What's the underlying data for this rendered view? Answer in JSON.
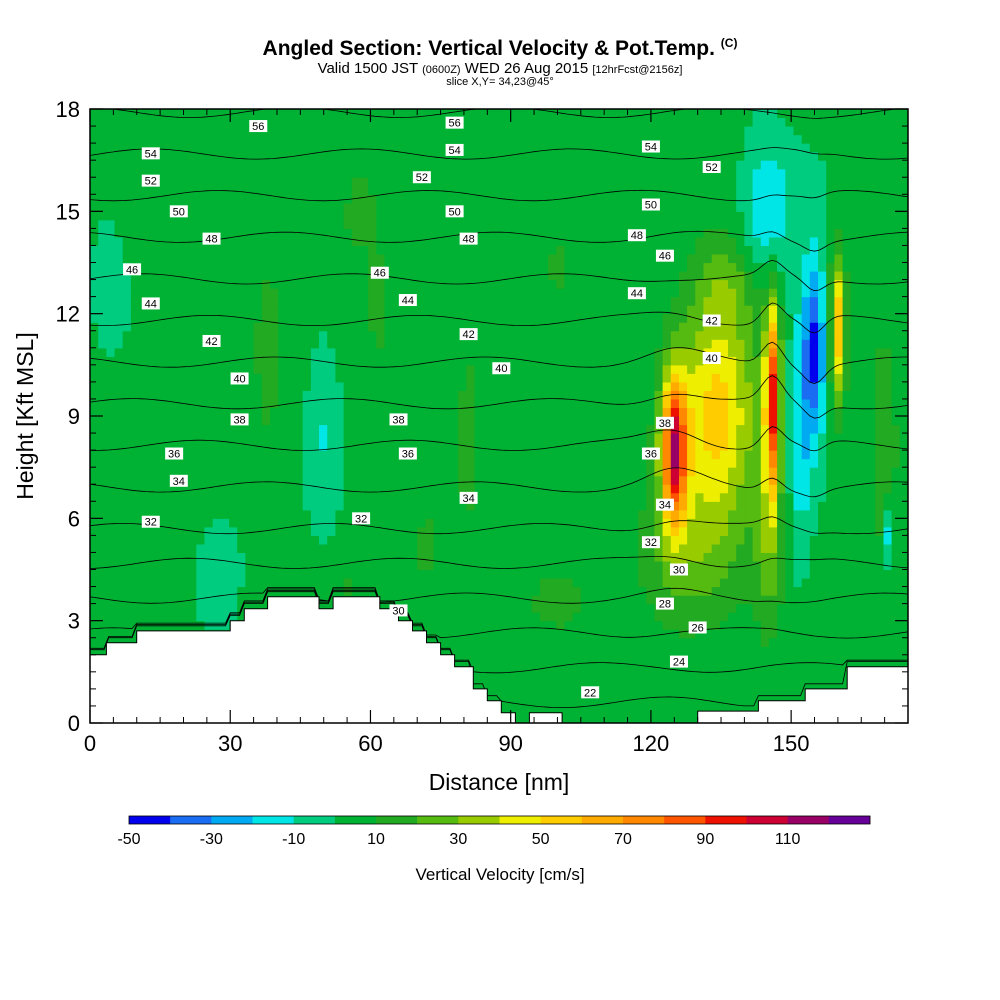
{
  "header": {
    "title": "Angled Section: Vertical Velocity & Pot.Temp.",
    "title_tag": "(C)",
    "valid_prefix": "Valid 1500 JST",
    "valid_utc": "(0600Z)",
    "valid_date": "WED 26 Aug 2015",
    "fcst": "[12hrFcst@2156z]",
    "slice": "slice X,Y= 34,23@45°"
  },
  "chart_data": {
    "type": "heatmap",
    "title": "Angled Section: Vertical Velocity & Pot.Temp.",
    "xlabel": "Distance [nm]",
    "ylabel": "Height [Kft MSL]",
    "xlim": [
      0,
      175
    ],
    "ylim": [
      0,
      18
    ],
    "x_ticks": [
      "0",
      "30",
      "60",
      "90",
      "120",
      "150"
    ],
    "y_ticks": [
      "0",
      "3",
      "6",
      "9",
      "12",
      "15",
      "18"
    ],
    "colorbar": {
      "title": "Vertical Velocity [cm/s]",
      "tick_labels": [
        "-50",
        "-30",
        "-10",
        "10",
        "30",
        "50",
        "70",
        "90",
        "110"
      ],
      "bin_edges": [
        -50,
        -40,
        -30,
        -20,
        -10,
        0,
        10,
        20,
        30,
        40,
        50,
        60,
        70,
        80,
        90,
        100,
        110,
        120
      ],
      "colors": [
        "#0000ee",
        "#1a6cf2",
        "#00aaf2",
        "#00e6e6",
        "#00cc80",
        "#00b233",
        "#22aa22",
        "#55bb11",
        "#99cc00",
        "#eeee00",
        "#ffcc00",
        "#ffaa00",
        "#ff8800",
        "#ff5500",
        "#ee1100",
        "#cc0033",
        "#990066",
        "#660099"
      ]
    },
    "theta_contours": {
      "levels": [
        22,
        24,
        26,
        28,
        30,
        32,
        34,
        36,
        38,
        40,
        42,
        44,
        46,
        48,
        50,
        52,
        54,
        56
      ],
      "labels": [
        {
          "text": "56",
          "x": 36,
          "y": 17.5
        },
        {
          "text": "56",
          "x": 78,
          "y": 17.6
        },
        {
          "text": "54",
          "x": 13,
          "y": 16.7
        },
        {
          "text": "54",
          "x": 78,
          "y": 16.8
        },
        {
          "text": "54",
          "x": 120,
          "y": 16.9
        },
        {
          "text": "52",
          "x": 13,
          "y": 15.9
        },
        {
          "text": "52",
          "x": 71,
          "y": 16.0
        },
        {
          "text": "52",
          "x": 133,
          "y": 16.3
        },
        {
          "text": "50",
          "x": 19,
          "y": 15.0
        },
        {
          "text": "50",
          "x": 78,
          "y": 15.0
        },
        {
          "text": "50",
          "x": 120,
          "y": 15.2
        },
        {
          "text": "48",
          "x": 26,
          "y": 14.2
        },
        {
          "text": "48",
          "x": 81,
          "y": 14.2
        },
        {
          "text": "48",
          "x": 117,
          "y": 14.3
        },
        {
          "text": "46",
          "x": 9,
          "y": 13.3
        },
        {
          "text": "46",
          "x": 62,
          "y": 13.2
        },
        {
          "text": "46",
          "x": 123,
          "y": 13.7
        },
        {
          "text": "44",
          "x": 13,
          "y": 12.3
        },
        {
          "text": "44",
          "x": 68,
          "y": 12.4
        },
        {
          "text": "44",
          "x": 117,
          "y": 12.6
        },
        {
          "text": "42",
          "x": 26,
          "y": 11.2
        },
        {
          "text": "42",
          "x": 81,
          "y": 11.4
        },
        {
          "text": "42",
          "x": 133,
          "y": 11.8
        },
        {
          "text": "40",
          "x": 32,
          "y": 10.1
        },
        {
          "text": "40",
          "x": 88,
          "y": 10.4
        },
        {
          "text": "40",
          "x": 133,
          "y": 10.7
        },
        {
          "text": "38",
          "x": 32,
          "y": 8.9
        },
        {
          "text": "38",
          "x": 66,
          "y": 8.9
        },
        {
          "text": "38",
          "x": 123,
          "y": 8.8
        },
        {
          "text": "36",
          "x": 18,
          "y": 7.9
        },
        {
          "text": "36",
          "x": 68,
          "y": 7.9
        },
        {
          "text": "36",
          "x": 120,
          "y": 7.9
        },
        {
          "text": "34",
          "x": 19,
          "y": 7.1
        },
        {
          "text": "34",
          "x": 81,
          "y": 6.6
        },
        {
          "text": "34",
          "x": 123,
          "y": 6.4
        },
        {
          "text": "32",
          "x": 13,
          "y": 5.9
        },
        {
          "text": "32",
          "x": 58,
          "y": 6.0
        },
        {
          "text": "32",
          "x": 120,
          "y": 5.3
        },
        {
          "text": "30",
          "x": 66,
          "y": 3.3
        },
        {
          "text": "30",
          "x": 126,
          "y": 4.5
        },
        {
          "text": "28",
          "x": 123,
          "y": 3.5
        },
        {
          "text": "26",
          "x": 130,
          "y": 2.8
        },
        {
          "text": "24",
          "x": 126,
          "y": 1.8
        },
        {
          "text": "22",
          "x": 107,
          "y": 0.9
        }
      ]
    },
    "terrain_profile": {
      "x": [
        0,
        3.5,
        3.5,
        10,
        10,
        30,
        30,
        33,
        33,
        38,
        38,
        49,
        49,
        52,
        52,
        62,
        62,
        66,
        66,
        69,
        69,
        72,
        72,
        75,
        75,
        78,
        78,
        82,
        82,
        85,
        85,
        88,
        88,
        91,
        91,
        94,
        94,
        101,
        101,
        130,
        130,
        143,
        143,
        153,
        153,
        162,
        162,
        175
      ],
      "y": [
        2.0,
        2.0,
        2.35,
        2.35,
        2.7,
        2.7,
        3.0,
        3.0,
        3.35,
        3.35,
        3.7,
        3.7,
        3.35,
        3.35,
        3.7,
        3.7,
        3.35,
        3.35,
        3.0,
        3.0,
        2.7,
        2.7,
        2.35,
        2.35,
        2.0,
        2.0,
        1.65,
        1.65,
        1.0,
        1.0,
        0.65,
        0.65,
        0.3,
        0.3,
        0.0,
        0.0,
        0.3,
        0.3,
        0.0,
        0.0,
        0.35,
        0.35,
        0.65,
        0.65,
        1.0,
        1.0,
        1.65,
        1.65
      ]
    },
    "features": [
      {
        "name": "updraft",
        "x": 125,
        "y": 8.0,
        "peak": 90
      },
      {
        "name": "updraft",
        "x": 146,
        "y": 9.5,
        "peak": 115
      },
      {
        "name": "downdraft",
        "x": 155,
        "y": 11.0,
        "peak": -45
      },
      {
        "name": "updraft",
        "x": 160,
        "y": 11.5,
        "peak": 55
      }
    ]
  }
}
